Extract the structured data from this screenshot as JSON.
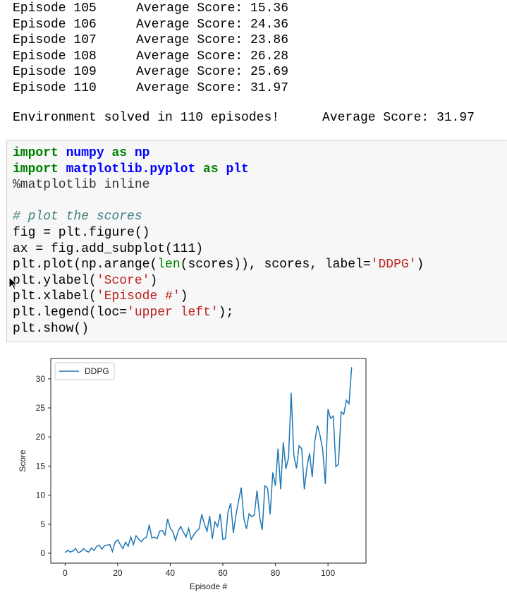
{
  "output": {
    "rows": [
      [
        "Episode 105",
        "Average Score: 15.36"
      ],
      [
        "Episode 106",
        "Average Score: 24.36"
      ],
      [
        "Episode 107",
        "Average Score: 23.86"
      ],
      [
        "Episode 108",
        "Average Score: 26.28"
      ],
      [
        "Episode 109",
        "Average Score: 25.69"
      ],
      [
        "Episode 110",
        "Average Score: 31.97"
      ]
    ],
    "solved": [
      "Environment solved in 110 episodes!",
      "Average Score: 31.97"
    ]
  },
  "code": {
    "lines": [
      [
        {
          "text": "import",
          "style": "keyword"
        },
        {
          "text": " numpy ",
          "style": "module"
        },
        {
          "text": "as",
          "style": "keyword"
        },
        {
          "text": " np",
          "style": "module"
        }
      ],
      [
        {
          "text": "import",
          "style": "keyword"
        },
        {
          "text": " matplotlib.pyplot ",
          "style": "module"
        },
        {
          "text": "as",
          "style": "keyword"
        },
        {
          "text": " plt",
          "style": "module"
        }
      ],
      [
        {
          "text": "%matplotlib inline",
          "style": "magic"
        }
      ],
      [],
      [
        {
          "text": "# plot the scores",
          "style": "comment"
        }
      ],
      [
        {
          "text": "fig = plt.figure()",
          "style": "plain"
        }
      ],
      [
        {
          "text": "ax = fig.add_subplot(111)",
          "style": "plain"
        }
      ],
      [
        {
          "text": "plt.plot(np.arange(",
          "style": "plain"
        },
        {
          "text": "len",
          "style": "builtin"
        },
        {
          "text": "(scores)), scores, label=",
          "style": "plain"
        },
        {
          "text": "'DDPG'",
          "style": "string"
        },
        {
          "text": ")",
          "style": "plain"
        }
      ],
      [
        {
          "text": "plt.ylabel(",
          "style": "plain"
        },
        {
          "text": "'Score'",
          "style": "string"
        },
        {
          "text": ")",
          "style": "plain"
        }
      ],
      [
        {
          "text": "plt.xlabel(",
          "style": "plain"
        },
        {
          "text": "'Episode #'",
          "style": "string"
        },
        {
          "text": ")",
          "style": "plain"
        }
      ],
      [
        {
          "text": "plt.legend(loc=",
          "style": "plain"
        },
        {
          "text": "'upper left'",
          "style": "string"
        },
        {
          "text": ");",
          "style": "plain"
        }
      ],
      [
        {
          "text": "plt.show()",
          "style": "plain"
        }
      ]
    ]
  },
  "chart_data": {
    "type": "line",
    "xlabel": "Episode #",
    "ylabel": "Score",
    "legend": "upper left",
    "x": [
      0,
      1,
      2,
      3,
      4,
      5,
      6,
      7,
      8,
      9,
      10,
      11,
      12,
      13,
      14,
      15,
      16,
      17,
      18,
      19,
      20,
      21,
      22,
      23,
      24,
      25,
      26,
      27,
      28,
      29,
      30,
      31,
      32,
      33,
      34,
      35,
      36,
      37,
      38,
      39,
      40,
      41,
      42,
      43,
      44,
      45,
      46,
      47,
      48,
      49,
      50,
      51,
      52,
      53,
      54,
      55,
      56,
      57,
      58,
      59,
      60,
      61,
      62,
      63,
      64,
      65,
      66,
      67,
      68,
      69,
      70,
      71,
      72,
      73,
      74,
      75,
      76,
      77,
      78,
      79,
      80,
      81,
      82,
      83,
      84,
      85,
      86,
      87,
      88,
      89,
      90,
      91,
      92,
      93,
      94,
      95,
      96,
      97,
      98,
      99,
      100,
      101,
      102,
      103,
      104,
      105,
      106,
      107,
      108,
      109
    ],
    "series": [
      {
        "name": "DDPG",
        "color": "#1f77b4",
        "values": [
          0.1,
          0.5,
          0.2,
          0.4,
          0.8,
          0.1,
          0.3,
          0.8,
          0.4,
          0.2,
          0.9,
          0.5,
          1.2,
          1.4,
          0.7,
          1.3,
          1.4,
          1.5,
          0.3,
          1.9,
          2.3,
          1.5,
          0.8,
          1.9,
          1.2,
          2.8,
          1.5,
          3.0,
          2.4,
          2.0,
          2.5,
          2.8,
          4.9,
          2.6,
          2.8,
          2.5,
          3.8,
          3.9,
          3.1,
          5.9,
          4.3,
          3.7,
          2.2,
          3.8,
          4.6,
          3.6,
          2.8,
          4.3,
          2.4,
          3.2,
          3.8,
          4.2,
          6.7,
          5.0,
          3.8,
          6.4,
          2.5,
          5.4,
          4.6,
          6.8,
          2.4,
          2.5,
          7.2,
          8.6,
          3.5,
          6.6,
          9.0,
          11.3,
          6.0,
          4.2,
          6.8,
          6.3,
          6.6,
          10.8,
          6.3,
          4.0,
          11.6,
          11.2,
          6.7,
          13.9,
          11.6,
          18.0,
          11.0,
          19.1,
          14.5,
          16.5,
          27.6,
          16.9,
          14.6,
          18.5,
          18.0,
          11.0,
          14.8,
          17.2,
          13.1,
          19.3,
          22.0,
          20.2,
          17.8,
          11.9,
          24.8,
          23.2,
          23.6,
          14.9,
          15.3,
          24.3,
          23.9,
          26.3,
          25.7,
          32.0
        ]
      }
    ],
    "xlim": [
      -5.45,
      114.45
    ],
    "xticks": [
      0,
      20,
      40,
      60,
      80,
      100
    ],
    "ylim": [
      -1.7,
      33.5
    ],
    "yticks": [
      0,
      5,
      10,
      15,
      20,
      25,
      30
    ]
  }
}
